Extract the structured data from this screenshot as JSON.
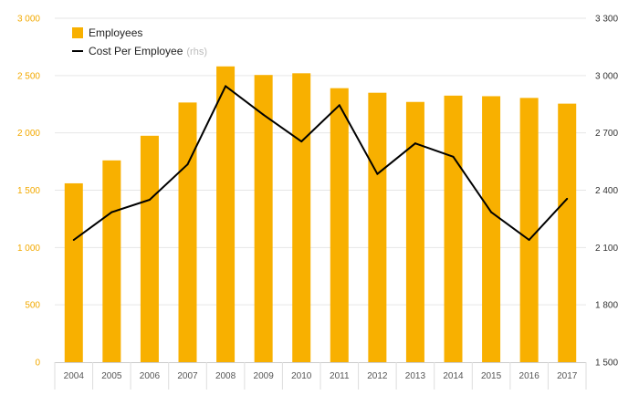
{
  "chart_data": {
    "type": "bar",
    "categories": [
      "2004",
      "2005",
      "2006",
      "2007",
      "2008",
      "2009",
      "2010",
      "2011",
      "2012",
      "2013",
      "2014",
      "2015",
      "2016",
      "2017"
    ],
    "series": [
      {
        "name": "Employees",
        "type": "bar",
        "axis": "left",
        "color": "#f8b000",
        "values": [
          1560,
          1760,
          1975,
          2265,
          2580,
          2505,
          2520,
          2390,
          2350,
          2270,
          2325,
          2320,
          2305,
          2255
        ]
      },
      {
        "name": "Cost Per Employee",
        "name_suffix": "(rhs)",
        "type": "line",
        "axis": "right",
        "color": "#000000",
        "values": [
          2140,
          2285,
          2350,
          2535,
          2945,
          2795,
          2655,
          2845,
          2485,
          2645,
          2575,
          2285,
          2140,
          2355
        ]
      }
    ],
    "y_left": {
      "ylim": [
        0,
        3000
      ],
      "ticks": [
        0,
        500,
        1000,
        1500,
        2000,
        2500,
        3000
      ],
      "tick_labels": [
        "0",
        "500",
        "1 000",
        "1 500",
        "2 000",
        "2 500",
        "3 000"
      ],
      "label_color": "#f2a900"
    },
    "y_right": {
      "ylim": [
        1500,
        3300
      ],
      "ticks": [
        1500,
        1800,
        2100,
        2400,
        2700,
        3000,
        3300
      ],
      "tick_labels": [
        "1 500",
        "1 800",
        "2 100",
        "2 400",
        "2 700",
        "3 000",
        "3 300"
      ]
    },
    "title": "",
    "xlabel": "",
    "ylabel": "",
    "grid": "horizontal",
    "legend": "top-left"
  }
}
